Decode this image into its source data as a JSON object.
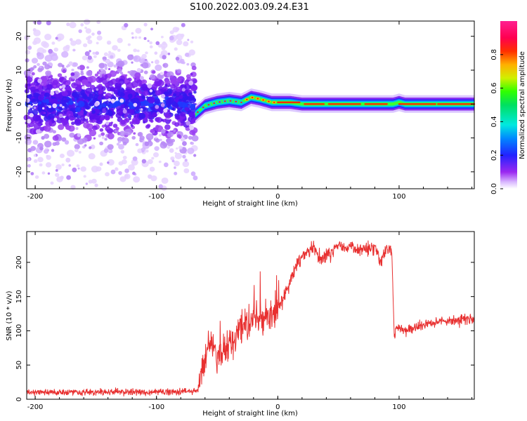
{
  "title": "S100.2022.003.09.24.E31",
  "chart_data": [
    {
      "type": "heatmap",
      "xlabel": "Height of straight line (km)",
      "ylabel": "Frequency (Hz)",
      "xlim": [
        -207,
        162
      ],
      "ylim": [
        -25,
        24.5
      ],
      "x_ticks": [
        -200,
        -100,
        0,
        100
      ],
      "y_ticks": [
        -20,
        -10,
        0,
        10,
        20
      ],
      "colorbar": {
        "label": "Normalized spectral amplitude",
        "range": [
          0.0,
          1.0
        ],
        "ticks": [
          0.0,
          0.2,
          0.4,
          0.6,
          0.8
        ],
        "tick_labels": [
          "0.0",
          "0.2",
          "0.4",
          "0.6",
          "0.8"
        ]
      },
      "ridge": {
        "description_points_x": [
          -68,
          -60,
          -50,
          -40,
          -30,
          -22,
          -15,
          -5,
          0,
          10,
          20,
          40,
          60,
          80,
          95,
          100,
          105,
          130,
          162
        ],
        "description_points_y": [
          -3,
          -0.5,
          0.5,
          1,
          0.5,
          2,
          1.5,
          0.5,
          0.5,
          0.5,
          0,
          0,
          0,
          0,
          0,
          0.5,
          0,
          0,
          0
        ]
      }
    },
    {
      "type": "line",
      "xlabel": "Height of straight line (km)",
      "ylabel": "SNR (10 * v/v)",
      "xlim": [
        -207,
        162
      ],
      "ylim": [
        0,
        245
      ],
      "x_ticks": [
        -200,
        -100,
        0,
        100
      ],
      "y_ticks": [
        0,
        50,
        100,
        150,
        200
      ],
      "series": [
        {
          "color": "#e83030",
          "x": [
            -207,
            -190,
            -170,
            -150,
            -130,
            -110,
            -90,
            -75,
            -66,
            -62,
            -58,
            -55,
            -50,
            -45,
            -40,
            -35,
            -30,
            -25,
            -20,
            -15,
            -10,
            -5,
            0,
            5,
            10,
            15,
            20,
            25,
            30,
            35,
            40,
            45,
            50,
            55,
            60,
            65,
            70,
            75,
            80,
            85,
            90,
            94,
            96,
            98,
            105,
            115,
            125,
            135,
            145,
            155,
            162
          ],
          "y": [
            10,
            10,
            11,
            10,
            11,
            10,
            11,
            12,
            12,
            45,
            75,
            85,
            60,
            70,
            80,
            85,
            110,
            105,
            120,
            115,
            125,
            120,
            130,
            150,
            170,
            195,
            210,
            215,
            220,
            205,
            210,
            215,
            228,
            220,
            222,
            218,
            220,
            222,
            225,
            200,
            225,
            215,
            90,
            105,
            100,
            105,
            112,
            115,
            115,
            117,
            118
          ]
        }
      ]
    }
  ]
}
